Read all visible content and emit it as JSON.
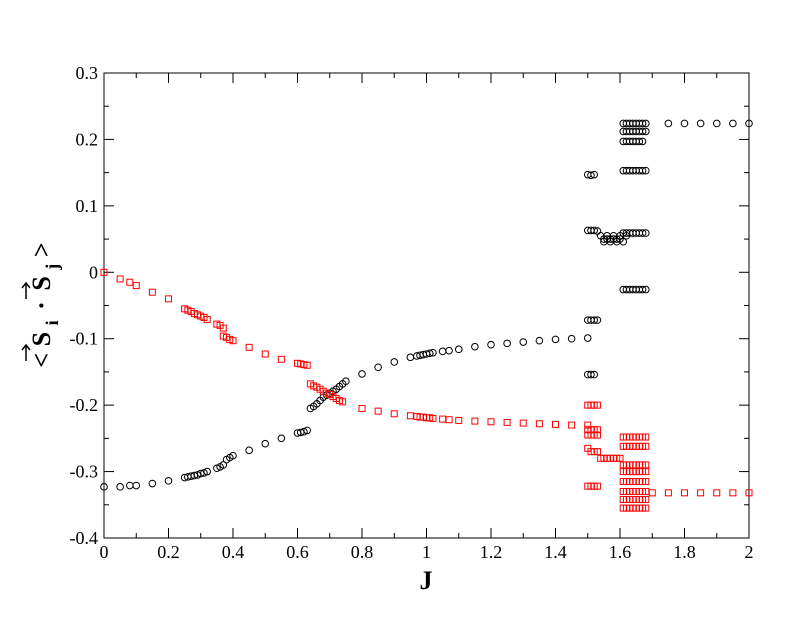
{
  "chart_data": {
    "type": "scatter",
    "xlabel": "J",
    "ylabel": "<S_i · S_j>",
    "ylabel_parts": {
      "open": "<",
      "s1": "S",
      "sub1": "i",
      "dot": "·",
      "s2": "S",
      "sub2": "j",
      "close": ">"
    },
    "xlim": [
      0,
      2
    ],
    "ylim": [
      -0.4,
      0.3
    ],
    "grid": false,
    "x_ticks": [
      0,
      0.2,
      0.4,
      0.6,
      0.8,
      1,
      1.2,
      1.4,
      1.6,
      1.8,
      2
    ],
    "x_tick_labels": [
      "0",
      "0.2",
      "0.4",
      "0.6",
      "0.8",
      "1",
      "1.2",
      "1.4",
      "1.6",
      "1.8",
      "2"
    ],
    "y_ticks": [
      -0.4,
      -0.3,
      -0.2,
      -0.1,
      0,
      0.1,
      0.2,
      0.3
    ],
    "y_tick_labels": [
      "-0.4",
      "-0.3",
      "-0.2",
      "-0.1",
      "0",
      "0.1",
      "0.2",
      "0.3"
    ],
    "series": [
      {
        "marker": "circle",
        "color": "#000000",
        "points": [
          [
            0,
            -0.323
          ],
          [
            0.05,
            -0.323
          ],
          [
            0.08,
            -0.321
          ],
          [
            0.1,
            -0.321
          ],
          [
            0.15,
            -0.318
          ],
          [
            0.2,
            -0.314
          ],
          [
            0.25,
            -0.309
          ],
          [
            0.26,
            -0.308
          ],
          [
            0.27,
            -0.307
          ],
          [
            0.28,
            -0.306
          ],
          [
            0.29,
            -0.305
          ],
          [
            0.3,
            -0.303
          ],
          [
            0.31,
            -0.302
          ],
          [
            0.32,
            -0.3
          ],
          [
            0.35,
            -0.295
          ],
          [
            0.36,
            -0.293
          ],
          [
            0.37,
            -0.29
          ],
          [
            0.38,
            -0.282
          ],
          [
            0.39,
            -0.279
          ],
          [
            0.4,
            -0.276
          ],
          [
            0.45,
            -0.268
          ],
          [
            0.5,
            -0.258
          ],
          [
            0.55,
            -0.25
          ],
          [
            0.6,
            -0.242
          ],
          [
            0.61,
            -0.241
          ],
          [
            0.62,
            -0.24
          ],
          [
            0.63,
            -0.238
          ],
          [
            0.64,
            -0.205
          ],
          [
            0.65,
            -0.202
          ],
          [
            0.66,
            -0.198
          ],
          [
            0.67,
            -0.193
          ],
          [
            0.68,
            -0.188
          ],
          [
            0.69,
            -0.185
          ],
          [
            0.7,
            -0.182
          ],
          [
            0.71,
            -0.179
          ],
          [
            0.72,
            -0.176
          ],
          [
            0.73,
            -0.172
          ],
          [
            0.74,
            -0.168
          ],
          [
            0.75,
            -0.164
          ],
          [
            0.8,
            -0.153
          ],
          [
            0.85,
            -0.143
          ],
          [
            0.9,
            -0.135
          ],
          [
            0.95,
            -0.128
          ],
          [
            0.97,
            -0.126
          ],
          [
            0.98,
            -0.125
          ],
          [
            0.99,
            -0.124
          ],
          [
            1,
            -0.123
          ],
          [
            1.01,
            -0.122
          ],
          [
            1.02,
            -0.121
          ],
          [
            1.05,
            -0.119
          ],
          [
            1.07,
            -0.118
          ],
          [
            1.1,
            -0.116
          ],
          [
            1.15,
            -0.112
          ],
          [
            1.2,
            -0.109
          ],
          [
            1.25,
            -0.107
          ],
          [
            1.3,
            -0.105
          ],
          [
            1.35,
            -0.103
          ],
          [
            1.4,
            -0.101
          ],
          [
            1.45,
            -0.1
          ],
          [
            1.5,
            -0.099
          ],
          [
            1.5,
            0.147
          ],
          [
            1.51,
            0.146
          ],
          [
            1.52,
            0.147
          ],
          [
            1.5,
            0.063
          ],
          [
            1.51,
            0.063
          ],
          [
            1.52,
            0.063
          ],
          [
            1.53,
            0.062
          ],
          [
            1.5,
            -0.072
          ],
          [
            1.51,
            -0.072
          ],
          [
            1.52,
            -0.072
          ],
          [
            1.53,
            -0.072
          ],
          [
            1.5,
            -0.154
          ],
          [
            1.51,
            -0.154
          ],
          [
            1.52,
            -0.154
          ],
          [
            1.54,
            0.055
          ],
          [
            1.55,
            0.05
          ],
          [
            1.56,
            0.05
          ],
          [
            1.57,
            0.05
          ],
          [
            1.58,
            0.05
          ],
          [
            1.59,
            0.05
          ],
          [
            1.6,
            0.05
          ],
          [
            1.55,
            0.046
          ],
          [
            1.57,
            0.046
          ],
          [
            1.59,
            0.046
          ],
          [
            1.61,
            0.046
          ],
          [
            1.56,
            0.055
          ],
          [
            1.58,
            0.055
          ],
          [
            1.6,
            0.055
          ],
          [
            1.62,
            0.055
          ],
          [
            1.61,
            0.224
          ],
          [
            1.62,
            0.224
          ],
          [
            1.63,
            0.224
          ],
          [
            1.64,
            0.224
          ],
          [
            1.65,
            0.224
          ],
          [
            1.66,
            0.224
          ],
          [
            1.67,
            0.224
          ],
          [
            1.68,
            0.224
          ],
          [
            1.61,
            0.212
          ],
          [
            1.62,
            0.212
          ],
          [
            1.63,
            0.212
          ],
          [
            1.64,
            0.212
          ],
          [
            1.65,
            0.212
          ],
          [
            1.66,
            0.212
          ],
          [
            1.67,
            0.212
          ],
          [
            1.68,
            0.212
          ],
          [
            1.61,
            0.197
          ],
          [
            1.62,
            0.197
          ],
          [
            1.63,
            0.197
          ],
          [
            1.64,
            0.197
          ],
          [
            1.65,
            0.197
          ],
          [
            1.66,
            0.197
          ],
          [
            1.67,
            0.197
          ],
          [
            1.61,
            0.153
          ],
          [
            1.62,
            0.153
          ],
          [
            1.63,
            0.153
          ],
          [
            1.64,
            0.153
          ],
          [
            1.65,
            0.153
          ],
          [
            1.66,
            0.153
          ],
          [
            1.67,
            0.153
          ],
          [
            1.68,
            0.153
          ],
          [
            1.61,
            0.059
          ],
          [
            1.62,
            0.059
          ],
          [
            1.63,
            0.059
          ],
          [
            1.64,
            0.059
          ],
          [
            1.65,
            0.059
          ],
          [
            1.66,
            0.059
          ],
          [
            1.67,
            0.059
          ],
          [
            1.68,
            0.059
          ],
          [
            1.61,
            -0.026
          ],
          [
            1.62,
            -0.026
          ],
          [
            1.63,
            -0.026
          ],
          [
            1.64,
            -0.026
          ],
          [
            1.65,
            -0.026
          ],
          [
            1.66,
            -0.026
          ],
          [
            1.67,
            -0.026
          ],
          [
            1.68,
            -0.026
          ],
          [
            1.75,
            0.224
          ],
          [
            1.8,
            0.224
          ],
          [
            1.85,
            0.224
          ],
          [
            1.9,
            0.224
          ],
          [
            1.95,
            0.224
          ],
          [
            2,
            0.224
          ]
        ]
      },
      {
        "marker": "square",
        "color": "#ff0000",
        "points": [
          [
            0,
            0
          ],
          [
            0.05,
            -0.01
          ],
          [
            0.08,
            -0.015
          ],
          [
            0.1,
            -0.02
          ],
          [
            0.15,
            -0.03
          ],
          [
            0.2,
            -0.04
          ],
          [
            0.25,
            -0.055
          ],
          [
            0.26,
            -0.057
          ],
          [
            0.27,
            -0.059
          ],
          [
            0.28,
            -0.062
          ],
          [
            0.29,
            -0.064
          ],
          [
            0.3,
            -0.066
          ],
          [
            0.31,
            -0.068
          ],
          [
            0.32,
            -0.071
          ],
          [
            0.35,
            -0.078
          ],
          [
            0.36,
            -0.08
          ],
          [
            0.37,
            -0.084
          ],
          [
            0.37,
            -0.096
          ],
          [
            0.38,
            -0.098
          ],
          [
            0.39,
            -0.101
          ],
          [
            0.4,
            -0.103
          ],
          [
            0.45,
            -0.113
          ],
          [
            0.5,
            -0.123
          ],
          [
            0.55,
            -0.131
          ],
          [
            0.6,
            -0.137
          ],
          [
            0.61,
            -0.138
          ],
          [
            0.62,
            -0.139
          ],
          [
            0.63,
            -0.14
          ],
          [
            0.64,
            -0.168
          ],
          [
            0.65,
            -0.171
          ],
          [
            0.66,
            -0.173
          ],
          [
            0.67,
            -0.176
          ],
          [
            0.68,
            -0.179
          ],
          [
            0.69,
            -0.182
          ],
          [
            0.7,
            -0.184
          ],
          [
            0.71,
            -0.187
          ],
          [
            0.72,
            -0.19
          ],
          [
            0.73,
            -0.193
          ],
          [
            0.74,
            -0.195
          ],
          [
            0.8,
            -0.205
          ],
          [
            0.85,
            -0.209
          ],
          [
            0.9,
            -0.213
          ],
          [
            0.95,
            -0.216
          ],
          [
            0.97,
            -0.217
          ],
          [
            0.98,
            -0.218
          ],
          [
            0.99,
            -0.218
          ],
          [
            1,
            -0.219
          ],
          [
            1.01,
            -0.219
          ],
          [
            1.02,
            -0.22
          ],
          [
            1.05,
            -0.221
          ],
          [
            1.07,
            -0.222
          ],
          [
            1.1,
            -0.223
          ],
          [
            1.15,
            -0.224
          ],
          [
            1.2,
            -0.225
          ],
          [
            1.25,
            -0.226
          ],
          [
            1.3,
            -0.227
          ],
          [
            1.35,
            -0.228
          ],
          [
            1.4,
            -0.229
          ],
          [
            1.45,
            -0.23
          ],
          [
            1.5,
            -0.23
          ],
          [
            1.5,
            -0.2
          ],
          [
            1.51,
            -0.2
          ],
          [
            1.52,
            -0.2
          ],
          [
            1.53,
            -0.2
          ],
          [
            1.5,
            -0.237
          ],
          [
            1.51,
            -0.237
          ],
          [
            1.52,
            -0.237
          ],
          [
            1.53,
            -0.237
          ],
          [
            1.5,
            -0.245
          ],
          [
            1.51,
            -0.245
          ],
          [
            1.52,
            -0.245
          ],
          [
            1.53,
            -0.245
          ],
          [
            1.5,
            -0.265
          ],
          [
            1.51,
            -0.27
          ],
          [
            1.52,
            -0.27
          ],
          [
            1.53,
            -0.27
          ],
          [
            1.5,
            -0.322
          ],
          [
            1.51,
            -0.322
          ],
          [
            1.52,
            -0.322
          ],
          [
            1.53,
            -0.322
          ],
          [
            1.54,
            -0.28
          ],
          [
            1.55,
            -0.28
          ],
          [
            1.56,
            -0.28
          ],
          [
            1.57,
            -0.28
          ],
          [
            1.58,
            -0.28
          ],
          [
            1.59,
            -0.28
          ],
          [
            1.6,
            -0.28
          ],
          [
            1.61,
            -0.248
          ],
          [
            1.62,
            -0.248
          ],
          [
            1.63,
            -0.248
          ],
          [
            1.64,
            -0.248
          ],
          [
            1.65,
            -0.248
          ],
          [
            1.66,
            -0.248
          ],
          [
            1.67,
            -0.248
          ],
          [
            1.68,
            -0.248
          ],
          [
            1.61,
            -0.262
          ],
          [
            1.62,
            -0.262
          ],
          [
            1.63,
            -0.262
          ],
          [
            1.64,
            -0.262
          ],
          [
            1.65,
            -0.262
          ],
          [
            1.66,
            -0.262
          ],
          [
            1.67,
            -0.262
          ],
          [
            1.68,
            -0.262
          ],
          [
            1.61,
            -0.29
          ],
          [
            1.62,
            -0.29
          ],
          [
            1.63,
            -0.29
          ],
          [
            1.64,
            -0.29
          ],
          [
            1.65,
            -0.29
          ],
          [
            1.66,
            -0.29
          ],
          [
            1.67,
            -0.29
          ],
          [
            1.68,
            -0.29
          ],
          [
            1.61,
            -0.3
          ],
          [
            1.62,
            -0.3
          ],
          [
            1.63,
            -0.3
          ],
          [
            1.64,
            -0.3
          ],
          [
            1.65,
            -0.3
          ],
          [
            1.66,
            -0.3
          ],
          [
            1.67,
            -0.3
          ],
          [
            1.68,
            -0.3
          ],
          [
            1.61,
            -0.315
          ],
          [
            1.62,
            -0.315
          ],
          [
            1.63,
            -0.315
          ],
          [
            1.64,
            -0.315
          ],
          [
            1.65,
            -0.315
          ],
          [
            1.66,
            -0.315
          ],
          [
            1.67,
            -0.315
          ],
          [
            1.68,
            -0.315
          ],
          [
            1.61,
            -0.33
          ],
          [
            1.62,
            -0.33
          ],
          [
            1.63,
            -0.33
          ],
          [
            1.64,
            -0.33
          ],
          [
            1.65,
            -0.33
          ],
          [
            1.66,
            -0.33
          ],
          [
            1.67,
            -0.33
          ],
          [
            1.68,
            -0.33
          ],
          [
            1.61,
            -0.342
          ],
          [
            1.62,
            -0.342
          ],
          [
            1.63,
            -0.342
          ],
          [
            1.64,
            -0.342
          ],
          [
            1.65,
            -0.342
          ],
          [
            1.66,
            -0.342
          ],
          [
            1.67,
            -0.342
          ],
          [
            1.68,
            -0.342
          ],
          [
            1.61,
            -0.355
          ],
          [
            1.62,
            -0.355
          ],
          [
            1.63,
            -0.355
          ],
          [
            1.64,
            -0.355
          ],
          [
            1.65,
            -0.355
          ],
          [
            1.66,
            -0.355
          ],
          [
            1.67,
            -0.355
          ],
          [
            1.68,
            -0.355
          ],
          [
            1.7,
            -0.332
          ],
          [
            1.75,
            -0.332
          ],
          [
            1.8,
            -0.332
          ],
          [
            1.85,
            -0.332
          ],
          [
            1.9,
            -0.332
          ],
          [
            1.95,
            -0.332
          ],
          [
            2,
            -0.332
          ]
        ]
      }
    ]
  }
}
